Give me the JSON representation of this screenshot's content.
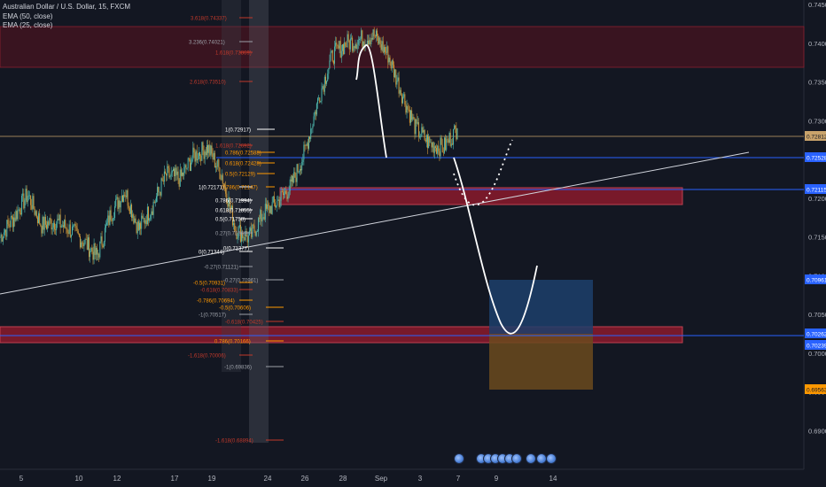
{
  "legend": {
    "symbol": "Australian Dollar / U.S. Dollar, 15, FXCM",
    "ema50": "EMA (50, close)",
    "ema25": "EMA (25, close)"
  },
  "colors": {
    "background": "#131722",
    "axis_text": "#b2b5be",
    "blue_level": "#2962ff",
    "zone_red": "#8b1a2b",
    "zone_orange": "#ff9800",
    "long_box": "#1d3f6b",
    "short_box": "#6b4a1d",
    "candle_up": "#4db6ac",
    "candle_down": "#d19a3a"
  },
  "chart_data": {
    "type": "line",
    "title": "Australian Dollar / U.S. Dollar, 15, FXCM",
    "series": [
      {
        "name": "AUDUSD",
        "x": [
          "5",
          "6",
          "7",
          "8",
          "9",
          "10",
          "11",
          "12",
          "13",
          "14",
          "15",
          "16",
          "17",
          "18",
          "19",
          "20",
          "21",
          "22",
          "23",
          "24",
          "25",
          "26",
          "27",
          "28",
          "29",
          "30",
          "31",
          "Sep",
          "2",
          "3",
          "4",
          "5",
          "6",
          "7"
        ],
        "values": [
          0.715,
          0.7175,
          0.7205,
          0.7165,
          0.717,
          0.716,
          0.7145,
          0.7125,
          0.718,
          0.721,
          0.716,
          0.719,
          0.723,
          0.7225,
          0.7255,
          0.7265,
          0.723,
          0.716,
          0.7148,
          0.718,
          0.7195,
          0.7215,
          0.726,
          0.733,
          0.7385,
          0.74,
          0.7405,
          0.741,
          0.7385,
          0.7335,
          0.729,
          0.727,
          0.7265,
          0.729
        ]
      }
    ],
    "ylim": [
      0.685,
      0.745
    ],
    "y_ticks": [
      "0.74500",
      "0.74000",
      "0.73500",
      "0.73000",
      "0.72500",
      "0.72000",
      "0.71500",
      "0.71000",
      "0.70500",
      "0.70000",
      "0.69500",
      "0.69000"
    ],
    "x_ticks": [
      "5",
      "10",
      "12",
      "17",
      "19",
      "24",
      "26",
      "28",
      "Sep",
      "3",
      "7",
      "9",
      "14"
    ],
    "price_labels": [
      "0.72812",
      "0.72528",
      "0.72115",
      "0.70961",
      "0.70262",
      "0.70239",
      "0.69563"
    ],
    "fib_upper": [
      "3.618(0.74337)",
      "3.236(0.74021)",
      "1.618(0.73869)",
      "2.618(0.73510)",
      "1(0.72917)",
      "1.618(0.72692)",
      "0.786(0.72588)",
      "0.618(0.72428)",
      "0.5(0.72129)",
      "1(0.72171)",
      "0.786(0.72147)",
      "0.786(0.71994)",
      "0.618(0.71855)",
      "0.5(0.71758)",
      "0.27(0.71568)",
      "0(0.71377)",
      "0(0.71344)",
      "-0.27(0.71121)",
      "-0.27(0.70961)",
      "-0.5(0.70931)",
      "-0.618(0.70833)",
      "-0.786(0.70694)",
      "-0.5(0.70606)",
      "-1(0.70517)",
      "-0.618(0.70425)",
      "0.786(0.70166)",
      "-1.618(0.70006)",
      "-1(0.69836)",
      "-1.618(0.68894)"
    ],
    "legend_placement": "top-left",
    "grid": false
  }
}
